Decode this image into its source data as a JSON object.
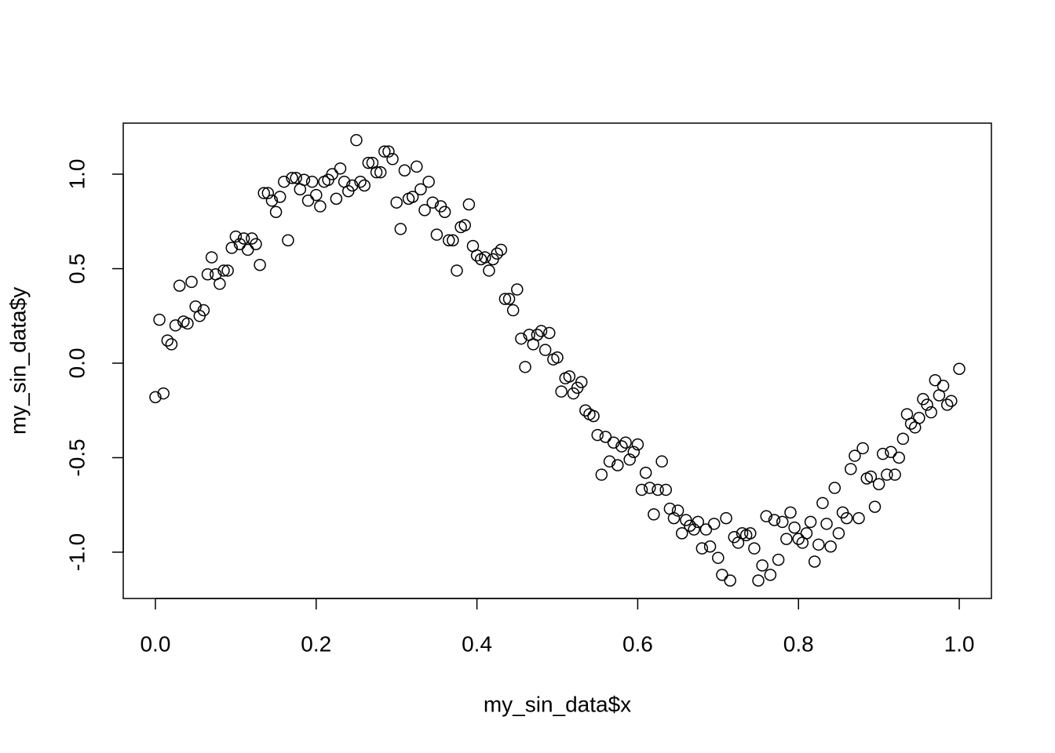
{
  "chart_data": {
    "type": "scatter",
    "x_label": "my_sin_data$x",
    "y_label": "my_sin_data$y",
    "xlim": [
      -0.04,
      1.04
    ],
    "ylim": [
      -1.245,
      1.27
    ],
    "xticks": [
      {
        "value": 0,
        "label": "0.0"
      },
      0.2,
      0.4,
      0.6,
      0.8,
      {
        "value": 1,
        "label": "1.0"
      }
    ],
    "yticks": [
      {
        "value": -1,
        "label": "-1.0"
      },
      -0.5,
      {
        "value": 0,
        "label": "0.0"
      },
      0.5,
      {
        "value": 1,
        "label": "1.0"
      }
    ],
    "color": "#000000",
    "x": [
      0,
      0.005,
      0.01,
      0.015,
      0.02,
      0.025,
      0.03,
      0.035,
      0.04,
      0.045,
      0.05,
      0.055,
      0.06,
      0.065,
      0.07,
      0.075,
      0.08,
      0.085,
      0.09,
      0.095,
      0.1,
      0.105,
      0.11,
      0.115,
      0.12,
      0.125,
      0.13,
      0.135,
      0.14,
      0.145,
      0.15,
      0.155,
      0.16,
      0.165,
      0.17,
      0.175,
      0.18,
      0.185,
      0.19,
      0.195,
      0.2,
      0.205,
      0.21,
      0.215,
      0.22,
      0.225,
      0.23,
      0.235,
      0.24,
      0.245,
      0.25,
      0.255,
      0.26,
      0.265,
      0.27,
      0.275,
      0.28,
      0.285,
      0.29,
      0.295,
      0.3,
      0.305,
      0.31,
      0.315,
      0.32,
      0.325,
      0.33,
      0.335,
      0.34,
      0.345,
      0.35,
      0.355,
      0.36,
      0.365,
      0.37,
      0.375,
      0.38,
      0.385,
      0.39,
      0.395,
      0.4,
      0.405,
      0.41,
      0.415,
      0.42,
      0.425,
      0.43,
      0.435,
      0.44,
      0.445,
      0.45,
      0.455,
      0.46,
      0.465,
      0.47,
      0.475,
      0.48,
      0.485,
      0.49,
      0.495,
      0.5,
      0.505,
      0.51,
      0.515,
      0.52,
      0.525,
      0.53,
      0.535,
      0.54,
      0.545,
      0.55,
      0.555,
      0.56,
      0.565,
      0.57,
      0.575,
      0.58,
      0.585,
      0.59,
      0.595,
      0.6,
      0.605,
      0.61,
      0.615,
      0.62,
      0.625,
      0.63,
      0.635,
      0.64,
      0.645,
      0.65,
      0.655,
      0.66,
      0.665,
      0.67,
      0.675,
      0.68,
      0.685,
      0.69,
      0.695,
      0.7,
      0.705,
      0.71,
      0.715,
      0.72,
      0.725,
      0.73,
      0.735,
      0.74,
      0.745,
      0.75,
      0.755,
      0.76,
      0.765,
      0.77,
      0.775,
      0.78,
      0.785,
      0.79,
      0.795,
      0.8,
      0.805,
      0.81,
      0.815,
      0.82,
      0.825,
      0.83,
      0.835,
      0.84,
      0.845,
      0.85,
      0.855,
      0.86,
      0.865,
      0.87,
      0.875,
      0.88,
      0.885,
      0.89,
      0.895,
      0.9,
      0.905,
      0.91,
      0.915,
      0.92,
      0.925,
      0.93,
      0.935,
      0.94,
      0.945,
      0.95,
      0.955,
      0.96,
      0.965,
      0.97,
      0.975,
      0.98,
      0.985,
      0.99,
      1.0
    ],
    "values": [
      -0.18,
      0.23,
      -0.16,
      0.12,
      0.1,
      0.2,
      0.41,
      0.22,
      0.21,
      0.43,
      0.3,
      0.25,
      0.28,
      0.47,
      0.56,
      0.47,
      0.42,
      0.49,
      0.49,
      0.61,
      0.67,
      0.63,
      0.66,
      0.6,
      0.66,
      0.63,
      0.52,
      0.9,
      0.9,
      0.86,
      0.8,
      0.88,
      0.96,
      0.65,
      0.98,
      0.98,
      0.92,
      0.97,
      0.86,
      0.96,
      0.89,
      0.83,
      0.96,
      0.97,
      1.0,
      0.87,
      1.03,
      0.96,
      0.91,
      0.94,
      1.18,
      0.96,
      0.94,
      1.06,
      1.06,
      1.01,
      1.01,
      1.12,
      1.12,
      1.08,
      0.85,
      0.71,
      1.02,
      0.87,
      0.88,
      1.04,
      0.92,
      0.81,
      0.96,
      0.85,
      0.68,
      0.83,
      0.8,
      0.65,
      0.65,
      0.49,
      0.72,
      0.73,
      0.84,
      0.62,
      0.57,
      0.55,
      0.56,
      0.49,
      0.55,
      0.58,
      0.6,
      0.34,
      0.34,
      0.28,
      0.39,
      0.13,
      -0.02,
      0.15,
      0.1,
      0.15,
      0.17,
      0.07,
      0.16,
      0.02,
      0.03,
      -0.15,
      -0.08,
      -0.07,
      -0.16,
      -0.13,
      -0.1,
      -0.25,
      -0.27,
      -0.28,
      -0.38,
      -0.59,
      -0.39,
      -0.52,
      -0.42,
      -0.54,
      -0.44,
      -0.42,
      -0.51,
      -0.47,
      -0.43,
      -0.67,
      -0.58,
      -0.66,
      -0.8,
      -0.67,
      -0.52,
      -0.67,
      -0.77,
      -0.82,
      -0.78,
      -0.9,
      -0.83,
      -0.86,
      -0.88,
      -0.84,
      -0.98,
      -0.88,
      -0.97,
      -0.85,
      -1.03,
      -1.12,
      -0.82,
      -1.15,
      -0.92,
      -0.95,
      -0.9,
      -0.91,
      -0.9,
      -0.98,
      -1.15,
      -1.07,
      -0.81,
      -1.12,
      -0.83,
      -1.04,
      -0.84,
      -0.93,
      -0.79,
      -0.87,
      -0.93,
      -0.95,
      -0.9,
      -0.84,
      -1.05,
      -0.96,
      -0.74,
      -0.85,
      -0.97,
      -0.66,
      -0.9,
      -0.79,
      -0.82,
      -0.56,
      -0.49,
      -0.82,
      -0.45,
      -0.61,
      -0.6,
      -0.76,
      -0.64,
      -0.48,
      -0.59,
      -0.47,
      -0.59,
      -0.5,
      -0.4,
      -0.27,
      -0.32,
      -0.34,
      -0.29,
      -0.19,
      -0.22,
      -0.26,
      -0.09,
      -0.17,
      -0.12,
      -0.22,
      -0.2,
      -0.03
    ]
  }
}
